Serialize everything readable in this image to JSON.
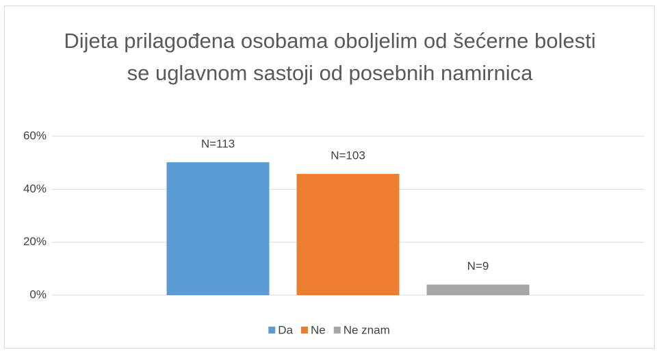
{
  "chart_data": {
    "type": "bar",
    "title": "Dijeta prilagođena osobama oboljelim od šećerne bolesti se uglavnom sastoji od posebnih namirnica",
    "categories": [
      null
    ],
    "series": [
      {
        "name": "Da",
        "color": "#5b9bd5",
        "values": [
          50.2
        ],
        "label": "N=113"
      },
      {
        "name": "Ne",
        "color": "#ed7d31",
        "values": [
          45.8
        ],
        "label": "N=103"
      },
      {
        "name": "Ne znam",
        "color": "#a5a5a5",
        "values": [
          4.0
        ],
        "label": "N=9"
      }
    ],
    "ylim": [
      0,
      60
    ],
    "yticks": [
      {
        "value": 0,
        "label": "0%"
      },
      {
        "value": 20,
        "label": "20%"
      },
      {
        "value": 40,
        "label": "40%"
      },
      {
        "value": 60,
        "label": "60%"
      }
    ],
    "grid": true,
    "legend": "bottom"
  }
}
